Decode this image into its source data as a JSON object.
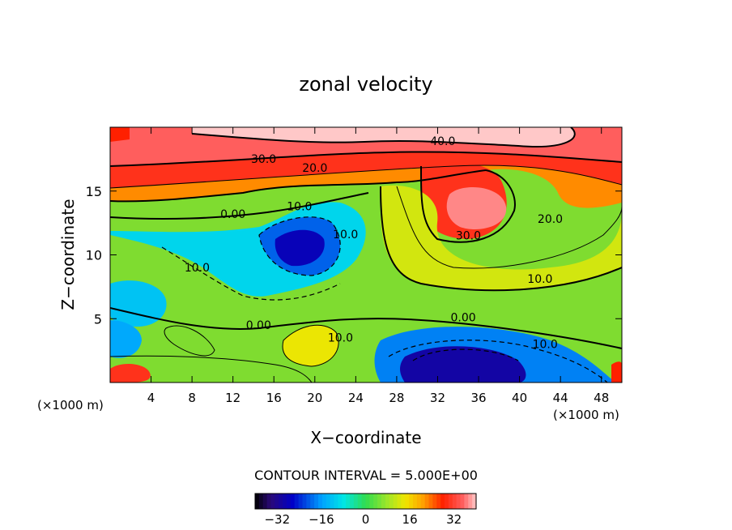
{
  "chart_data": {
    "type": "heatmap",
    "title": "zonal velocity",
    "xlabel": "X−coordinate",
    "ylabel": "Z−coordinate",
    "x_unit_left": "(×1000 m)",
    "x_unit_right": "(×1000 m)",
    "xlim": [
      0,
      50
    ],
    "ylim": [
      0,
      20
    ],
    "x_ticks": [
      4,
      8,
      12,
      16,
      20,
      24,
      28,
      32,
      36,
      40,
      44,
      48
    ],
    "y_ticks": [
      5,
      10,
      15
    ],
    "contour_interval_text": "CONTOUR INTERVAL = 5.000E+00",
    "contour_labels": [
      {
        "text": "40.0",
        "x": 32.5,
        "y": 18.6
      },
      {
        "text": "30.0",
        "x": 15.0,
        "y": 17.2
      },
      {
        "text": "20.0",
        "x": 20.0,
        "y": 16.5
      },
      {
        "text": "10.0",
        "x": 18.5,
        "y": 13.5
      },
      {
        "text": "0.00",
        "x": 12.0,
        "y": 12.9
      },
      {
        "text": "10.0",
        "x": 23.0,
        "y": 11.3
      },
      {
        "text": "10.0",
        "x": 8.5,
        "y": 8.7
      },
      {
        "text": "30.0",
        "x": 35.0,
        "y": 11.2
      },
      {
        "text": "20.0",
        "x": 43.0,
        "y": 12.5
      },
      {
        "text": "10.0",
        "x": 42.0,
        "y": 7.8
      },
      {
        "text": "0.00",
        "x": 14.5,
        "y": 4.2
      },
      {
        "text": "0.00",
        "x": 34.5,
        "y": 4.8
      },
      {
        "text": "10.0",
        "x": 22.5,
        "y": 3.2
      },
      {
        "text": "10.0",
        "x": 42.5,
        "y": 2.7
      }
    ],
    "colorbar": {
      "range": [
        -40,
        40
      ],
      "ticks": [
        -32,
        -16,
        0,
        16,
        32
      ],
      "tick_labels": [
        "−32",
        "−16",
        "0",
        "16",
        "32"
      ]
    }
  }
}
